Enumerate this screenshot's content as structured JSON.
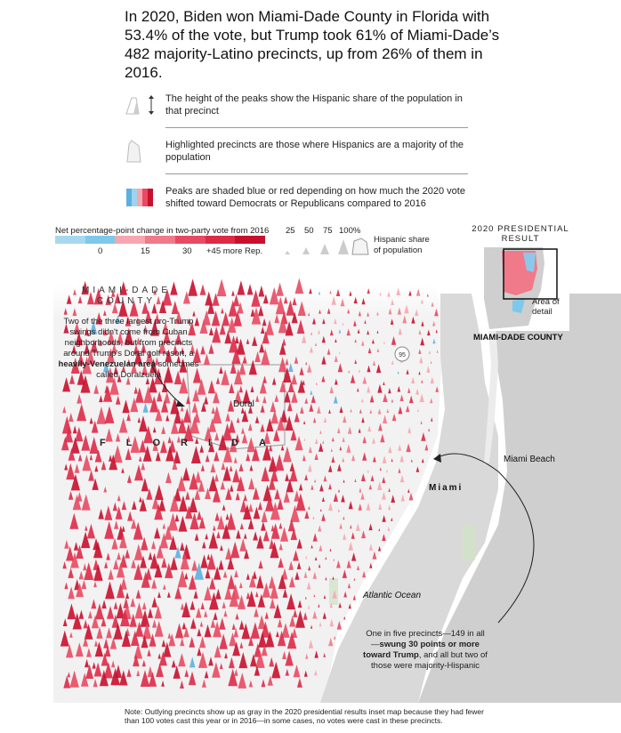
{
  "headline": "In 2020, Biden won Miami-Dade County in Florida with 53.4% of the vote, but Trump took 61% of Miami-Dade’s 482 majority-Latino precincts, up from 26% of them in 2016.",
  "legend": {
    "height_text": "The height of the peaks show the Hispanic share of the population in that precinct",
    "highlight_text": "Highlighted precincts are those where Hispanics are a majority of the population",
    "shade_text": "Peaks are shaded blue or red depending on how much the 2020 vote shifted toward Democrats or Republicans compared to 2016"
  },
  "scale": {
    "title": "Net percentage-point change in two-party vote from 2016",
    "ticks": [
      "0",
      "15",
      "30",
      "+45 more Rep."
    ],
    "colors": [
      "#a8d8f0",
      "#7ec8ec",
      "#f7a6b0",
      "#f07a8a",
      "#e84a62",
      "#dd2a48",
      "#c8102e"
    ],
    "hispanic_pcts": [
      "25",
      "50",
      "75",
      "100%"
    ],
    "hispanic_label_1": "Hispanic share",
    "hispanic_label_2": "of population"
  },
  "map": {
    "county_label_1": "MIAMI-DADE",
    "county_label_2": "COUNTY",
    "florida": "FLORIDA",
    "doral": "Doral",
    "highway": "95",
    "miami_beach": "Miami Beach",
    "miami": "Miami",
    "ocean": "Atlantic Ocean"
  },
  "annotations": {
    "doral_1": "Two of the three largest pro-Trump swings didn't come from Cuban neighborhoods, but from precincts around Trump's Doral golf resort, a ",
    "doral_bold": "heavily-Venezuelan area",
    "doral_2": " sometimes called Doralzuela",
    "swing_1": "One in five precincts—149 in all—",
    "swing_bold": "swung 30 points or more toward Trump",
    "swing_2": ", and all but two of those were majority-Hispanic"
  },
  "inset": {
    "title": "2020 PRESIDENTIAL RESULT",
    "area_label": "Area of detail",
    "county_label": "MIAMI-DADE COUNTY"
  },
  "note": "Note: Outlying precincts show up as gray in the 2020 presidential results inset map because they had fewer than 100 votes cast this year or in 2016—in some cases, no votes were cast in these precincts."
}
